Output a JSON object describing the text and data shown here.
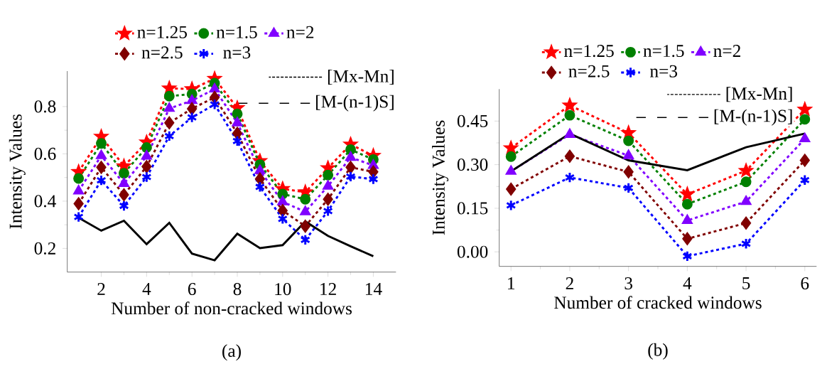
{
  "chart_data": [
    {
      "type": "line",
      "xlabel": "Number of non-cracked windows",
      "ylabel": "Intensity Values",
      "x": [
        1,
        2,
        3,
        4,
        5,
        6,
        7,
        8,
        9,
        10,
        11,
        12,
        13,
        14
      ],
      "xlim": [
        0.5,
        15
      ],
      "ylim": [
        0.1,
        0.95
      ],
      "xticks": [
        2,
        4,
        6,
        8,
        10,
        12,
        14
      ],
      "yticks": [
        0.2,
        0.4,
        0.6,
        0.8
      ],
      "legend": "top",
      "grid": false,
      "series": [
        {
          "name": "n=1.25",
          "color": "#ff0000",
          "marker": "star",
          "line_style": "dotted",
          "values": [
            0.524,
            0.673,
            0.548,
            0.649,
            0.877,
            0.874,
            0.918,
            0.794,
            0.57,
            0.452,
            0.438,
            0.54,
            0.64,
            0.592
          ]
        },
        {
          "name": "n=1.5",
          "color": "#008000",
          "marker": "circle",
          "line_style": "dotted",
          "values": [
            0.496,
            0.644,
            0.518,
            0.627,
            0.844,
            0.853,
            0.899,
            0.769,
            0.555,
            0.43,
            0.408,
            0.51,
            0.618,
            0.576
          ]
        },
        {
          "name": "n=2",
          "color": "#8000ff",
          "marker": "triangle",
          "line_style": "dotted",
          "values": [
            0.443,
            0.592,
            0.474,
            0.59,
            0.792,
            0.825,
            0.874,
            0.731,
            0.529,
            0.397,
            0.355,
            0.463,
            0.585,
            0.551
          ]
        },
        {
          "name": "n=2.5",
          "color": "#800000",
          "marker": "diamond",
          "line_style": "dotted",
          "values": [
            0.389,
            0.543,
            0.427,
            0.546,
            0.731,
            0.791,
            0.839,
            0.687,
            0.494,
            0.36,
            0.294,
            0.408,
            0.543,
            0.524
          ]
        },
        {
          "name": "n=3",
          "color": "#0000ff",
          "marker": "cross",
          "line_style": "dotted",
          "values": [
            0.333,
            0.488,
            0.38,
            0.502,
            0.675,
            0.754,
            0.809,
            0.654,
            0.46,
            0.325,
            0.236,
            0.358,
            0.504,
            0.493
          ]
        },
        {
          "name": "[Mx-Mn]",
          "color": "#000000",
          "marker": "none",
          "line_style": "solid",
          "values": [
            0.33,
            0.275,
            0.317,
            0.218,
            0.308,
            0.178,
            0.15,
            0.262,
            0.201,
            0.214,
            0.314,
            0.253,
            0.209,
            0.167
          ]
        }
      ],
      "annotations": [
        "[M-(n-1)S]",
        "(a)"
      ]
    },
    {
      "type": "line",
      "xlabel": "Number of cracked windows",
      "ylabel": "Intensity Values",
      "x": [
        1,
        2,
        3,
        4,
        5,
        6
      ],
      "xlim": [
        0.8,
        6.2
      ],
      "ylim": [
        -0.05,
        0.56
      ],
      "xticks": [
        1,
        2,
        3,
        4,
        5,
        6
      ],
      "yticks": [
        {
          "value": 0,
          "label": "0.00"
        },
        0.15,
        {
          "value": 0.3,
          "label": "0.30"
        },
        0.45
      ],
      "legend": "top",
      "grid": false,
      "series": [
        {
          "name": "n=1.25",
          "color": "#ff0000",
          "marker": "star",
          "line_style": "dotted",
          "values": [
            0.357,
            0.504,
            0.409,
            0.198,
            0.279,
            0.49
          ]
        },
        {
          "name": "n=1.5",
          "color": "#008000",
          "marker": "circle",
          "line_style": "dotted",
          "values": [
            0.328,
            0.47,
            0.382,
            0.164,
            0.241,
            0.456
          ]
        },
        {
          "name": "n=2",
          "color": "#8000ff",
          "marker": "triangle",
          "line_style": "dotted",
          "values": [
            0.277,
            0.404,
            0.331,
            0.108,
            0.173,
            0.389
          ]
        },
        {
          "name": "n=2.5",
          "color": "#800000",
          "marker": "diamond",
          "line_style": "dotted",
          "values": [
            0.216,
            0.329,
            0.275,
            0.045,
            0.099,
            0.315
          ]
        },
        {
          "name": "n=3",
          "color": "#0000ff",
          "marker": "cross",
          "line_style": "dotted",
          "values": [
            0.16,
            0.256,
            0.22,
            -0.015,
            0.028,
            0.247
          ]
        },
        {
          "name": "[Mx-Mn]",
          "color": "#000000",
          "marker": "none",
          "line_style": "solid",
          "values": [
            0.277,
            0.407,
            0.315,
            0.281,
            0.36,
            0.407
          ]
        }
      ],
      "annotations": [
        "[M-(n-1)S]",
        "(b)"
      ]
    }
  ]
}
